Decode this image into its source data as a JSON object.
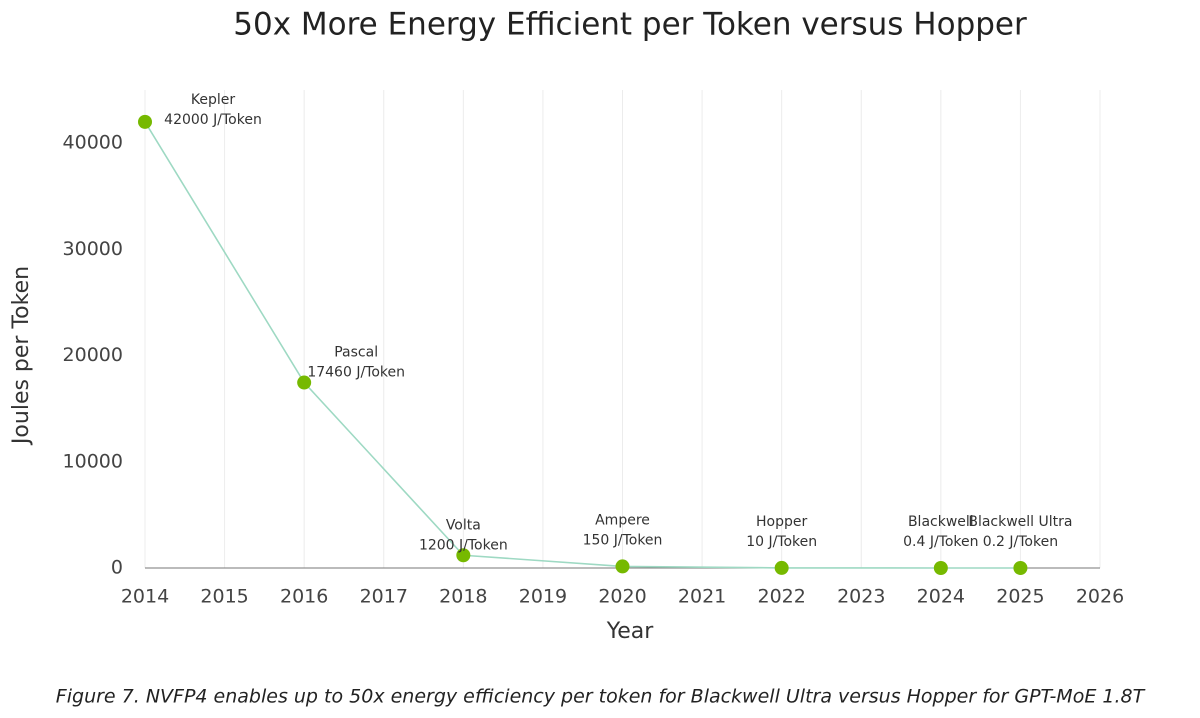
{
  "chart_data": {
    "type": "line",
    "title": "50x More Energy Efficient per Token versus Hopper",
    "x_label": "Year",
    "y_label": "Joules per Token",
    "caption": "Figure 7. NVFP4 enables up to 50x energy efficiency per token for Blackwell Ultra versus Hopper for GPT-MoE 1.8T",
    "x": [
      2014,
      2016,
      2018,
      2020,
      2022,
      2024,
      2025
    ],
    "values": [
      42000,
      17460,
      1200,
      150,
      10,
      0.4,
      0.2
    ],
    "value_labels": [
      "42000 J/Token",
      "17460 J/Token",
      "1200 J/Token",
      "150 J/Token",
      "10 J/Token",
      "0.4 J/Token",
      "0.2 J/Token"
    ],
    "point_labels": [
      "Kepler",
      "Pascal",
      "Volta",
      "Ampere",
      "Hopper",
      "Blackwell",
      "Blackwell Ultra"
    ],
    "line_color": "#9ed9c3",
    "marker_color": "#76b900",
    "xlim": [
      2014,
      2026
    ],
    "xticks": [
      2014,
      2015,
      2016,
      2017,
      2018,
      2019,
      2020,
      2021,
      2022,
      2023,
      2024,
      2025,
      2026
    ],
    "ylim": [
      0,
      45000
    ],
    "yticks": [
      0,
      10000,
      20000,
      30000,
      40000
    ],
    "grid": "x"
  }
}
